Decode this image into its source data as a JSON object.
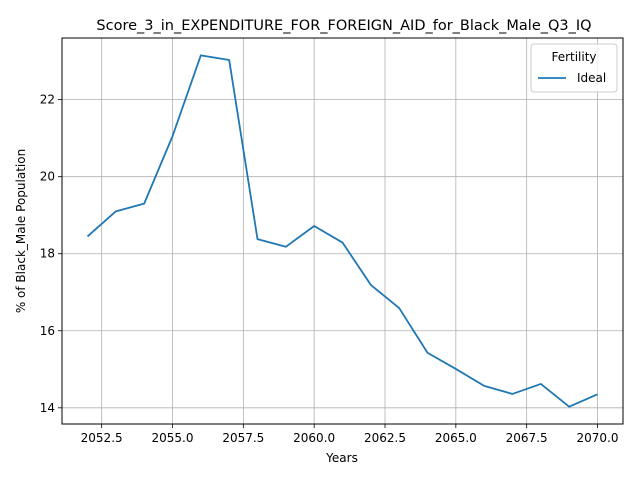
{
  "chart_data": {
    "type": "line",
    "title": "Score_3_in_EXPENDITURE_FOR_FOREIGN_AID_for_Black_Male_Q3_IQ",
    "xlabel": "Years",
    "ylabel": "% of Black_Male Population",
    "xlim": [
      2051.1,
      2070.9
    ],
    "ylim": [
      13.58,
      23.6
    ],
    "xticks": [
      2052.5,
      2055.0,
      2057.5,
      2060.0,
      2062.5,
      2065.0,
      2067.5,
      2070.0
    ],
    "xtick_labels": [
      "2052.5",
      "2055.0",
      "2057.5",
      "2060.0",
      "2062.5",
      "2065.0",
      "2067.5",
      "2070.0"
    ],
    "yticks": [
      14,
      16,
      18,
      20,
      22
    ],
    "ytick_labels": [
      "14",
      "16",
      "18",
      "20",
      "22"
    ],
    "grid": true,
    "legend": {
      "title": "Fertility",
      "position": "top-right"
    },
    "series": [
      {
        "name": "Ideal",
        "color": "#1f77b4",
        "x": [
          2052,
          2053,
          2054,
          2055,
          2056,
          2057,
          2058,
          2059,
          2060,
          2061,
          2062,
          2063,
          2064,
          2065,
          2066,
          2067,
          2068,
          2069,
          2070
        ],
        "y": [
          18.45,
          19.1,
          19.3,
          21.05,
          23.15,
          23.03,
          18.38,
          18.18,
          18.72,
          18.29,
          17.19,
          16.59,
          15.43,
          15.01,
          14.57,
          14.36,
          14.62,
          14.03,
          14.35
        ]
      }
    ]
  }
}
